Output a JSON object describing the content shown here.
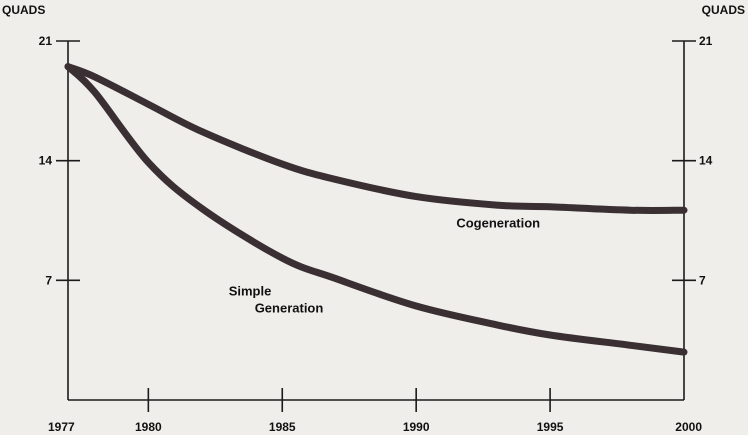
{
  "chart_data": {
    "type": "line",
    "title": "",
    "xlabel": "",
    "ylabel": "QUADS",
    "ylabel_right": "QUADS",
    "xlim": [
      1977,
      2000
    ],
    "ylim": [
      0,
      21
    ],
    "x_ticks": [
      1977,
      1980,
      1985,
      1990,
      1995,
      2000
    ],
    "x_tick_labels": [
      "1977",
      "1980",
      "1985",
      "1990",
      "1995",
      "2000"
    ],
    "y_ticks": [
      7,
      14,
      21
    ],
    "y_tick_labels": [
      "7",
      "14",
      "21"
    ],
    "grid": false,
    "legend": "none",
    "line_color": "#3a2f33",
    "series": [
      {
        "name": "Cogeneration",
        "x": [
          1977,
          1978,
          1980,
          1982,
          1985,
          1987,
          1990,
          1993,
          1995,
          1998,
          2000
        ],
        "y": [
          19.5,
          18.9,
          17.3,
          15.7,
          13.8,
          12.9,
          11.9,
          11.4,
          11.3,
          11.1,
          11.1
        ]
      },
      {
        "name": "Simple Generation",
        "x": [
          1977,
          1978,
          1980,
          1982,
          1985,
          1987,
          1990,
          1993,
          1995,
          1998,
          2000
        ],
        "y": [
          19.5,
          18.0,
          13.9,
          11.2,
          8.3,
          7.1,
          5.5,
          4.4,
          3.8,
          3.2,
          2.8
        ]
      }
    ],
    "annotations": [
      {
        "series": "Cogeneration",
        "lines": [
          "Cogeneration"
        ],
        "x": 1991.5,
        "y": 10.1,
        "anchor": "start"
      },
      {
        "series": "Simple Generation",
        "lines": [
          "Simple",
          "Generation"
        ],
        "x": 1983.0,
        "y": 6.1,
        "anchor": "start",
        "indent": [
          0,
          1
        ]
      }
    ]
  }
}
